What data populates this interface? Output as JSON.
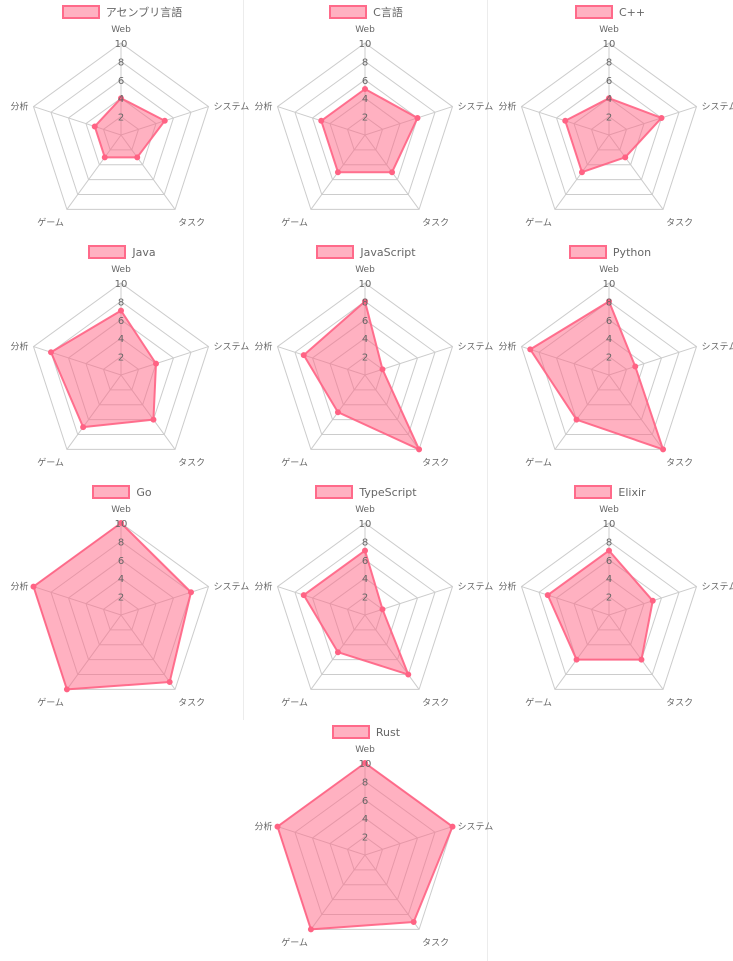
{
  "chart_data": [
    {
      "type": "radar",
      "series": [
        {
          "name": "アセンブリ言語",
          "values": [
            4,
            5,
            3,
            3,
            3
          ]
        }
      ],
      "categories": [
        "Web",
        "システム",
        "タスク",
        "ゲーム",
        "分析"
      ],
      "ticks": [
        "2",
        "4",
        "6",
        "8",
        "10"
      ],
      "rlim": [
        0,
        10
      ],
      "grid": true,
      "legend": "top"
    },
    {
      "type": "radar",
      "series": [
        {
          "name": "C言語",
          "values": [
            5,
            6,
            5,
            5,
            5
          ]
        }
      ],
      "categories": [
        "Web",
        "システム",
        "タスク",
        "ゲーム",
        "分析"
      ],
      "ticks": [
        "2",
        "4",
        "6",
        "8",
        "10"
      ],
      "rlim": [
        0,
        10
      ],
      "grid": true,
      "legend": "top"
    },
    {
      "type": "radar",
      "series": [
        {
          "name": "C++",
          "values": [
            4,
            6,
            3,
            5,
            5
          ]
        }
      ],
      "categories": [
        "Web",
        "システム",
        "タスク",
        "ゲーム",
        "分析"
      ],
      "ticks": [
        "2",
        "4",
        "6",
        "8",
        "10"
      ],
      "rlim": [
        0,
        10
      ],
      "grid": true,
      "legend": "top"
    },
    {
      "type": "radar",
      "series": [
        {
          "name": "Java",
          "values": [
            7,
            4,
            6,
            7,
            8
          ]
        }
      ],
      "categories": [
        "Web",
        "システム",
        "タスク",
        "ゲーム",
        "分析"
      ],
      "ticks": [
        "2",
        "4",
        "6",
        "8",
        "10"
      ],
      "rlim": [
        0,
        10
      ],
      "grid": true,
      "legend": "top"
    },
    {
      "type": "radar",
      "series": [
        {
          "name": "JavaScript",
          "values": [
            8,
            2,
            10,
            5,
            7
          ]
        }
      ],
      "categories": [
        "Web",
        "システム",
        "タスク",
        "ゲーム",
        "分析"
      ],
      "ticks": [
        "2",
        "4",
        "6",
        "8",
        "10"
      ],
      "rlim": [
        0,
        10
      ],
      "grid": true,
      "legend": "top"
    },
    {
      "type": "radar",
      "series": [
        {
          "name": "Python",
          "values": [
            8,
            3,
            10,
            6,
            9
          ]
        }
      ],
      "categories": [
        "Web",
        "システム",
        "タスク",
        "ゲーム",
        "分析"
      ],
      "ticks": [
        "2",
        "4",
        "6",
        "8",
        "10"
      ],
      "rlim": [
        0,
        10
      ],
      "grid": true,
      "legend": "top"
    },
    {
      "type": "radar",
      "series": [
        {
          "name": "Go",
          "values": [
            10,
            8,
            9,
            10,
            10
          ]
        }
      ],
      "categories": [
        "Web",
        "システム",
        "タスク",
        "ゲーム",
        "分析"
      ],
      "ticks": [
        "2",
        "4",
        "6",
        "8",
        "10"
      ],
      "rlim": [
        0,
        10
      ],
      "grid": true,
      "legend": "top"
    },
    {
      "type": "radar",
      "series": [
        {
          "name": "TypeScript",
          "values": [
            7,
            2,
            8,
            5,
            7
          ]
        }
      ],
      "categories": [
        "Web",
        "システム",
        "タスク",
        "ゲーム",
        "分析"
      ],
      "ticks": [
        "2",
        "4",
        "6",
        "8",
        "10"
      ],
      "rlim": [
        0,
        10
      ],
      "grid": true,
      "legend": "top"
    },
    {
      "type": "radar",
      "series": [
        {
          "name": "Elixir",
          "values": [
            7,
            5,
            6,
            6,
            7
          ]
        }
      ],
      "categories": [
        "Web",
        "システム",
        "タスク",
        "ゲーム",
        "分析"
      ],
      "ticks": [
        "2",
        "4",
        "6",
        "8",
        "10"
      ],
      "rlim": [
        0,
        10
      ],
      "grid": true,
      "legend": "top"
    },
    {
      "type": "radar",
      "series": [
        {
          "name": "Rust",
          "values": [
            10,
            10,
            9,
            10,
            10
          ]
        }
      ],
      "categories": [
        "Web",
        "システム",
        "タスク",
        "ゲーム",
        "分析"
      ],
      "ticks": [
        "2",
        "4",
        "6",
        "8",
        "10"
      ],
      "rlim": [
        0,
        10
      ],
      "grid": true,
      "legend": "top"
    }
  ],
  "colors": {
    "fill": "rgba(255,99,132,0.5)",
    "stroke": "rgba(255,99,132,0.9)",
    "point": "#ff6384",
    "grid": "#cccccc",
    "text": "#666666"
  }
}
